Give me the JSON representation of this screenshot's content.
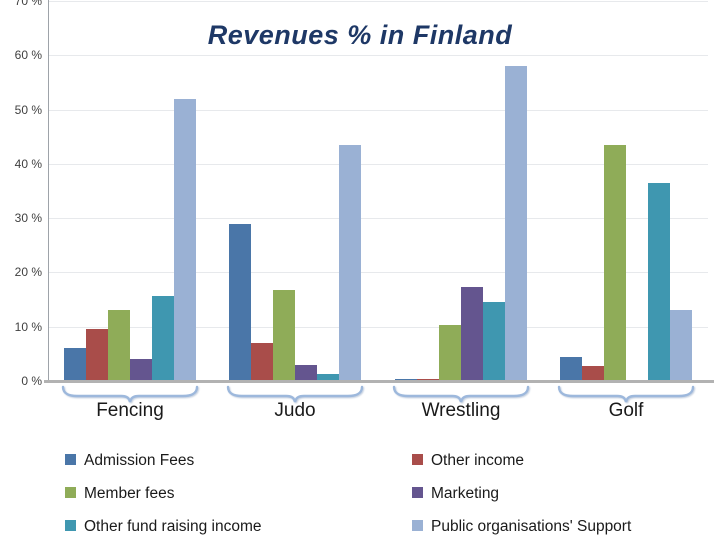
{
  "chart_data": {
    "type": "bar",
    "title": "Revenues % in Finland",
    "title_color": "#1e3866",
    "categories": [
      "Fencing",
      "Judo",
      "Wrestling",
      "Golf"
    ],
    "series": [
      {
        "name": "Admission Fees",
        "color": "#4a76a8",
        "values": [
          6,
          29,
          0.3,
          4.5
        ]
      },
      {
        "name": "Other income",
        "color": "#a94d4a",
        "values": [
          9.5,
          7,
          0.3,
          2.8
        ]
      },
      {
        "name": "Member fees",
        "color": "#8fac58",
        "values": [
          13,
          16.8,
          10.4,
          43.5
        ]
      },
      {
        "name": "Marketing",
        "color": "#64558f",
        "values": [
          4,
          3,
          17.3,
          0
        ]
      },
      {
        "name": "Other fund raising income",
        "color": "#3f97b0",
        "values": [
          15.7,
          1.2,
          14.5,
          36.5
        ]
      },
      {
        "name": "Public organisations' Support",
        "color": "#9ab1d4",
        "values": [
          52,
          43.5,
          58,
          13
        ]
      }
    ],
    "xlabel": "",
    "ylabel": "",
    "ylim": [
      0,
      70
    ],
    "ytick_step": 10,
    "grid": true,
    "legend_position": "bottom-two-columns"
  },
  "y_axis": {
    "ticks": [
      "0 %",
      "10 %",
      "20 %",
      "30 %",
      "40 %",
      "50 %",
      "60 %",
      "70 %"
    ]
  },
  "decor": {
    "brace_color": "#9db8dc"
  }
}
